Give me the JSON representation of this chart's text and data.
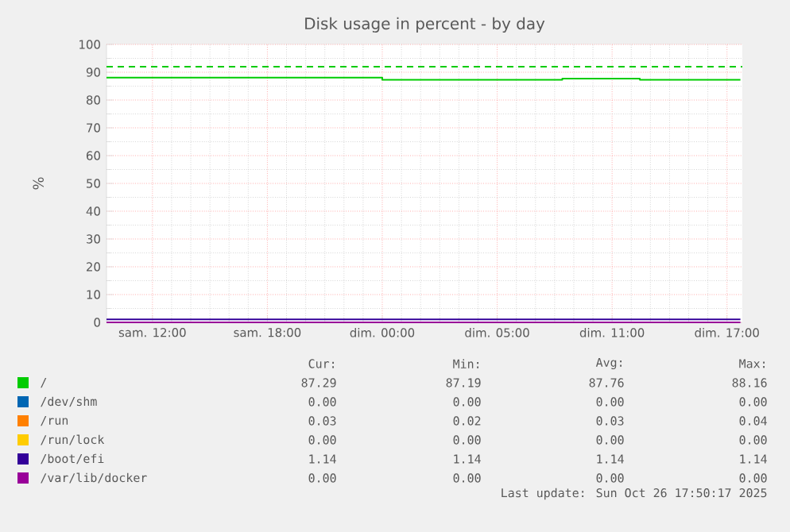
{
  "chart_data": {
    "type": "step",
    "title": "Disk usage in percent - by day",
    "ylabel": "%",
    "xlim": [
      "2025-10-25T07:36",
      "2025-10-26T16:48"
    ],
    "ylim": [
      0,
      100
    ],
    "xticks": [
      {
        "value": "2025-10-25T10:00",
        "label": "sam. 12:00"
      },
      {
        "value": "2025-10-25T16:00",
        "label": "sam. 18:00"
      },
      {
        "value": "2025-10-25T22:00",
        "label": "dim. 00:00"
      },
      {
        "value": "2025-10-26T04:00",
        "label": "dim. 05:00"
      },
      {
        "value": "2025-10-26T10:00",
        "label": "dim. 11:00"
      },
      {
        "value": "2025-10-26T16:00",
        "label": "dim. 17:00"
      }
    ],
    "yticks": [
      0,
      10,
      20,
      30,
      40,
      50,
      60,
      70,
      80,
      90,
      100
    ],
    "grid": true,
    "legend": "bottom",
    "marker": "none",
    "line_style": "solid",
    "series": [
      {
        "name": "/",
        "color": "#00cc00",
        "x": [
          "2025-10-25T07:36",
          "2025-10-25T22:00",
          "2025-10-26T07:24",
          "2025-10-26T11:27",
          "2025-10-26T16:42"
        ],
        "values": [
          88.1,
          87.3,
          87.7,
          87.3,
          87.3
        ]
      },
      {
        "name": "/dev/shm",
        "color": "#0066b3",
        "values": [
          null
        ]
      },
      {
        "name": "/run",
        "color": "#ff8000",
        "values": [
          null
        ]
      },
      {
        "name": "/run/lock",
        "color": "#ffcc00",
        "values": [
          null
        ]
      },
      {
        "name": "/boot/efi",
        "color": "#330099",
        "x": [
          "2025-10-25T07:36",
          "2025-10-26T16:42"
        ],
        "values": [
          1.1,
          1.1
        ]
      },
      {
        "name": "/var/lib/docker",
        "color": "#990099",
        "x": [
          "2025-10-25T07:36",
          "2025-10-26T16:42"
        ],
        "values": [
          0,
          0
        ]
      }
    ],
    "ref_lines": [
      {
        "axis": "y",
        "value": 92,
        "color": "#00cc00",
        "line_style": "dashed"
      }
    ],
    "annotations": [
      "Cur:",
      "Min:",
      "Avg:",
      "Max:",
      "87.29",
      "87.19",
      "87.76",
      "88.16",
      "0.00",
      "0.00",
      "0.00",
      "0.00",
      "0.03",
      "0.02",
      "0.03",
      "0.04",
      "0.00",
      "0.00",
      "0.00",
      "0.00",
      "1.14",
      "1.14",
      "1.14",
      "1.14",
      "0.00",
      "0.00",
      "0.00",
      "0.00",
      "Last update: Sun Oct 26 17:50:17 2025"
    ]
  }
}
